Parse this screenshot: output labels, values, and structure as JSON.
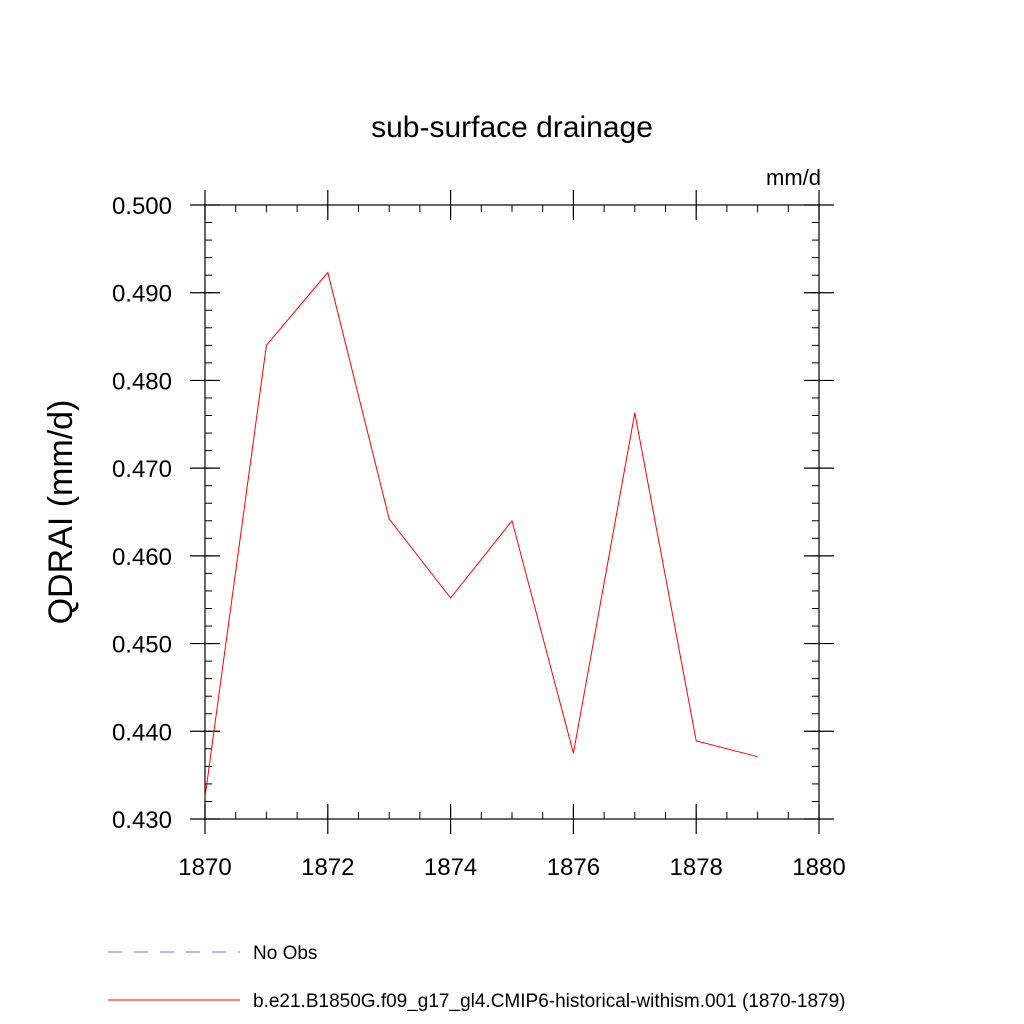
{
  "chart_data": {
    "type": "line",
    "title": "sub-surface drainage",
    "units_label": "mm/d",
    "ylabel": "QDRAI  (mm/d)",
    "xlabel": "",
    "xlim": [
      1870,
      1880
    ],
    "ylim": [
      0.43,
      0.5
    ],
    "x_ticks": [
      1870,
      1872,
      1874,
      1876,
      1878,
      1880
    ],
    "y_ticks": [
      0.43,
      0.44,
      0.45,
      0.46,
      0.47,
      0.48,
      0.49,
      0.5
    ],
    "x_tick_labels": [
      "1870",
      "1872",
      "1874",
      "1876",
      "1878",
      "1880"
    ],
    "y_tick_labels": [
      "0.430",
      "0.440",
      "0.450",
      "0.460",
      "0.470",
      "0.480",
      "0.490",
      "0.500"
    ],
    "grid": false,
    "legend_position": "bottom",
    "series": [
      {
        "name": "b.e21.B1850G.f09_g17_gl4.CMIP6-historical-withism.001 (1870-1879)",
        "color": "#ff0000",
        "style": "solid",
        "x": [
          1870,
          1871,
          1872,
          1873,
          1874,
          1875,
          1876,
          1877,
          1878,
          1879
        ],
        "y": [
          0.4325,
          0.484,
          0.4923,
          0.4642,
          0.4552,
          0.464,
          0.4375,
          0.4763,
          0.4389,
          0.4371
        ]
      }
    ],
    "legend": [
      {
        "name": "No Obs",
        "color": "#7b68ee",
        "style": "dashed"
      },
      {
        "name": "b.e21.B1850G.f09_g17_gl4.CMIP6-historical-withism.001 (1870-1879)",
        "color": "#ff0000",
        "style": "solid"
      }
    ]
  }
}
